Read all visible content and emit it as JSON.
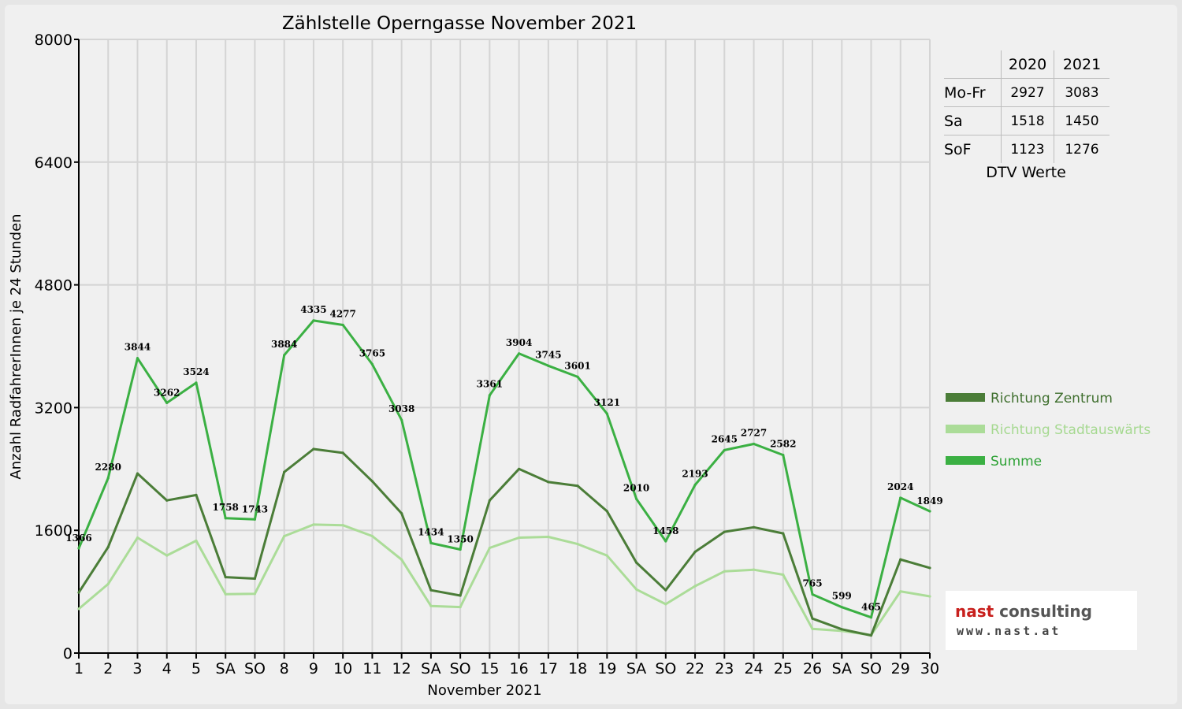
{
  "colors": {
    "zentrum": "#4b7d38",
    "stadtauswaerts": "#abdc98",
    "summe": "#3bb043",
    "weekend_label": "#ee0000"
  },
  "chart_data": {
    "type": "line",
    "title": "Zählstelle Operngasse November 2021",
    "xlabel": "November 2021",
    "ylabel": "Anzahl RadfahrerInnen je 24 Stunden",
    "ylim": [
      0,
      8000
    ],
    "yticks": [
      0,
      1600,
      3200,
      4800,
      6400,
      8000
    ],
    "grid": true,
    "legend_position": "right",
    "categories": [
      "1",
      "2",
      "3",
      "4",
      "5",
      "SA",
      "SO",
      "8",
      "9",
      "10",
      "11",
      "12",
      "SA",
      "SO",
      "15",
      "16",
      "17",
      "18",
      "19",
      "SA",
      "SO",
      "22",
      "23",
      "24",
      "25",
      "26",
      "SA",
      "SO",
      "29",
      "30"
    ],
    "red_categories": [
      0,
      6,
      13,
      20,
      27
    ],
    "series": [
      {
        "name": "Richtung Zentrum",
        "color": "#4b7d38",
        "values": [
          790,
          1380,
          2340,
          1990,
          2060,
          990,
          970,
          2360,
          2660,
          2610,
          2240,
          1820,
          820,
          750,
          1990,
          2400,
          2230,
          2180,
          1850,
          1180,
          820,
          1320,
          1580,
          1640,
          1560,
          450,
          310,
          230,
          1220,
          1110
        ]
      },
      {
        "name": "Richtung Stadtauswärts",
        "color": "#abdc98",
        "values": [
          576,
          900,
          1504,
          1272,
          1464,
          768,
          773,
          1524,
          1675,
          1667,
          1525,
          1218,
          614,
          600,
          1371,
          1504,
          1515,
          1421,
          1271,
          830,
          638,
          873,
          1065,
          1087,
          1022,
          315,
          289,
          235,
          804,
          739
        ]
      },
      {
        "name": "Summe",
        "color": "#3bb043",
        "values": [
          1366,
          2280,
          3844,
          3262,
          3524,
          1758,
          1743,
          3884,
          4335,
          4277,
          3765,
          3038,
          1434,
          1350,
          3361,
          3904,
          3745,
          3601,
          3121,
          2010,
          1458,
          2193,
          2645,
          2727,
          2582,
          765,
          599,
          465,
          2024,
          1849
        ]
      }
    ],
    "data_labels_series": "Summe"
  },
  "dtv_table": {
    "headers": [
      "",
      "2020",
      "2021"
    ],
    "rows": [
      {
        "label": "Mo-Fr",
        "v2020": "2927",
        "v2021": "3083"
      },
      {
        "label": "Sa",
        "v2020": "1518",
        "v2021": "1450"
      },
      {
        "label": "SoF",
        "v2020": "1123",
        "v2021": "1276"
      }
    ],
    "caption": "DTV Werte"
  },
  "logo": {
    "name_part1": "nast",
    "name_part2": " consulting",
    "url": "www.nast.at"
  }
}
